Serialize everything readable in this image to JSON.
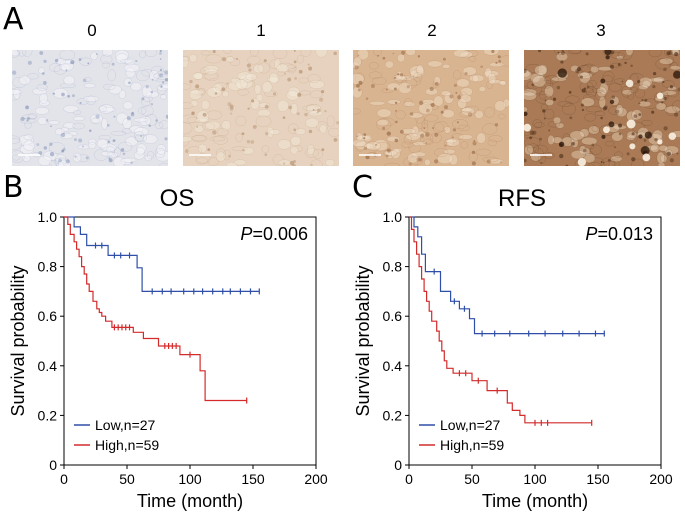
{
  "panels": {
    "a": "A",
    "b": "B",
    "c": "C"
  },
  "ihc": {
    "scores": [
      "0",
      "1",
      "2",
      "3"
    ],
    "colors": {
      "s0": "#e3e4ea",
      "s1": "#e6d2be",
      "s2": "#d9b491",
      "s3": "#a97a55"
    }
  },
  "colors": {
    "low": "#2f4fa8",
    "high": "#d42a2a"
  },
  "chart_data": [
    {
      "type": "line",
      "title": "OS",
      "xlabel": "Time (month)",
      "ylabel": "Survival probability",
      "xlim": [
        0,
        200
      ],
      "ylim": [
        0,
        1.0
      ],
      "xticks": [
        0,
        50,
        100,
        150,
        200
      ],
      "yticks": [
        0,
        0.2,
        0.4,
        0.6,
        0.8,
        1.0
      ],
      "ytick_labels": [
        "0",
        "0.2",
        "0.4",
        "0.6",
        "0.8",
        "1.0"
      ],
      "pvalue_prefix": "P",
      "pvalue_suffix": "=0.006",
      "legend_position": "bottom-left",
      "series": [
        {
          "name": "Low,n=27",
          "step_points": [
            [
              0,
              1.0
            ],
            [
              8,
              1.0
            ],
            [
              8,
              0.96
            ],
            [
              13,
              0.96
            ],
            [
              13,
              0.93
            ],
            [
              18,
              0.93
            ],
            [
              18,
              0.885
            ],
            [
              35,
              0.885
            ],
            [
              35,
              0.845
            ],
            [
              58,
              0.845
            ],
            [
              58,
              0.795
            ],
            [
              62,
              0.795
            ],
            [
              62,
              0.7
            ],
            [
              155,
              0.7
            ]
          ],
          "censors": [
            [
              25,
              0.885
            ],
            [
              30,
              0.885
            ],
            [
              40,
              0.845
            ],
            [
              45,
              0.845
            ],
            [
              52,
              0.845
            ],
            [
              70,
              0.7
            ],
            [
              78,
              0.7
            ],
            [
              85,
              0.7
            ],
            [
              95,
              0.7
            ],
            [
              103,
              0.7
            ],
            [
              110,
              0.7
            ],
            [
              118,
              0.7
            ],
            [
              126,
              0.7
            ],
            [
              132,
              0.7
            ],
            [
              140,
              0.7
            ],
            [
              148,
              0.7
            ],
            [
              155,
              0.7
            ]
          ]
        },
        {
          "name": "High,n=59",
          "step_points": [
            [
              0,
              1.0
            ],
            [
              3,
              1.0
            ],
            [
              3,
              0.97
            ],
            [
              5,
              0.97
            ],
            [
              5,
              0.93
            ],
            [
              8,
              0.93
            ],
            [
              8,
              0.9
            ],
            [
              10,
              0.9
            ],
            [
              10,
              0.87
            ],
            [
              12,
              0.87
            ],
            [
              12,
              0.84
            ],
            [
              14,
              0.84
            ],
            [
              14,
              0.8
            ],
            [
              16,
              0.8
            ],
            [
              16,
              0.77
            ],
            [
              18,
              0.77
            ],
            [
              18,
              0.73
            ],
            [
              20,
              0.73
            ],
            [
              20,
              0.7
            ],
            [
              23,
              0.7
            ],
            [
              23,
              0.66
            ],
            [
              26,
              0.66
            ],
            [
              26,
              0.63
            ],
            [
              28,
              0.63
            ],
            [
              28,
              0.615
            ],
            [
              30,
              0.615
            ],
            [
              30,
              0.6
            ],
            [
              33,
              0.6
            ],
            [
              33,
              0.58
            ],
            [
              38,
              0.58
            ],
            [
              38,
              0.555
            ],
            [
              55,
              0.555
            ],
            [
              55,
              0.535
            ],
            [
              63,
              0.535
            ],
            [
              63,
              0.51
            ],
            [
              75,
              0.51
            ],
            [
              75,
              0.48
            ],
            [
              92,
              0.48
            ],
            [
              92,
              0.445
            ],
            [
              108,
              0.445
            ],
            [
              108,
              0.38
            ],
            [
              112,
              0.38
            ],
            [
              112,
              0.26
            ],
            [
              145,
              0.26
            ]
          ],
          "censors": [
            [
              40,
              0.555
            ],
            [
              43,
              0.555
            ],
            [
              46,
              0.555
            ],
            [
              49,
              0.555
            ],
            [
              52,
              0.555
            ],
            [
              80,
              0.48
            ],
            [
              83,
              0.48
            ],
            [
              86,
              0.48
            ],
            [
              89,
              0.48
            ],
            [
              100,
              0.445
            ],
            [
              145,
              0.26
            ]
          ]
        }
      ]
    },
    {
      "type": "line",
      "title": "RFS",
      "xlabel": "Time (month)",
      "ylabel": "Survival probability",
      "xlim": [
        0,
        200
      ],
      "ylim": [
        0,
        1.0
      ],
      "xticks": [
        0,
        50,
        100,
        150,
        200
      ],
      "yticks": [
        0,
        0.2,
        0.4,
        0.6,
        0.8,
        1.0
      ],
      "ytick_labels": [
        "0",
        "0.2",
        "0.4",
        "0.6",
        "0.8",
        "1.0"
      ],
      "pvalue_prefix": "P",
      "pvalue_suffix": "=0.013",
      "legend_position": "bottom-left",
      "series": [
        {
          "name": "Low,n=27",
          "step_points": [
            [
              0,
              1.0
            ],
            [
              4,
              1.0
            ],
            [
              4,
              0.96
            ],
            [
              7,
              0.96
            ],
            [
              7,
              0.92
            ],
            [
              10,
              0.92
            ],
            [
              10,
              0.85
            ],
            [
              13,
              0.85
            ],
            [
              13,
              0.78
            ],
            [
              25,
              0.78
            ],
            [
              25,
              0.7
            ],
            [
              33,
              0.7
            ],
            [
              33,
              0.66
            ],
            [
              40,
              0.66
            ],
            [
              40,
              0.63
            ],
            [
              48,
              0.63
            ],
            [
              48,
              0.59
            ],
            [
              52,
              0.59
            ],
            [
              52,
              0.53
            ],
            [
              155,
              0.53
            ]
          ],
          "censors": [
            [
              20,
              0.78
            ],
            [
              36,
              0.66
            ],
            [
              44,
              0.63
            ],
            [
              58,
              0.53
            ],
            [
              68,
              0.53
            ],
            [
              80,
              0.53
            ],
            [
              95,
              0.53
            ],
            [
              108,
              0.53
            ],
            [
              122,
              0.53
            ],
            [
              135,
              0.53
            ],
            [
              148,
              0.53
            ],
            [
              155,
              0.53
            ]
          ]
        },
        {
          "name": "High,n=59",
          "step_points": [
            [
              0,
              1.0
            ],
            [
              2,
              1.0
            ],
            [
              2,
              0.95
            ],
            [
              4,
              0.95
            ],
            [
              4,
              0.9
            ],
            [
              6,
              0.9
            ],
            [
              6,
              0.85
            ],
            [
              8,
              0.85
            ],
            [
              8,
              0.8
            ],
            [
              10,
              0.8
            ],
            [
              10,
              0.75
            ],
            [
              12,
              0.75
            ],
            [
              12,
              0.7
            ],
            [
              14,
              0.7
            ],
            [
              14,
              0.66
            ],
            [
              16,
              0.66
            ],
            [
              16,
              0.62
            ],
            [
              18,
              0.62
            ],
            [
              18,
              0.58
            ],
            [
              22,
              0.58
            ],
            [
              22,
              0.54
            ],
            [
              24,
              0.54
            ],
            [
              24,
              0.5
            ],
            [
              26,
              0.5
            ],
            [
              26,
              0.46
            ],
            [
              28,
              0.46
            ],
            [
              28,
              0.42
            ],
            [
              30,
              0.42
            ],
            [
              30,
              0.39
            ],
            [
              35,
              0.39
            ],
            [
              35,
              0.37
            ],
            [
              50,
              0.37
            ],
            [
              50,
              0.34
            ],
            [
              62,
              0.34
            ],
            [
              62,
              0.3
            ],
            [
              78,
              0.3
            ],
            [
              78,
              0.25
            ],
            [
              82,
              0.25
            ],
            [
              82,
              0.22
            ],
            [
              88,
              0.22
            ],
            [
              88,
              0.2
            ],
            [
              92,
              0.2
            ],
            [
              92,
              0.17
            ],
            [
              145,
              0.17
            ]
          ],
          "censors": [
            [
              40,
              0.37
            ],
            [
              45,
              0.37
            ],
            [
              55,
              0.34
            ],
            [
              70,
              0.3
            ],
            [
              100,
              0.17
            ],
            [
              105,
              0.17
            ],
            [
              110,
              0.17
            ],
            [
              145,
              0.17
            ]
          ]
        }
      ]
    }
  ]
}
